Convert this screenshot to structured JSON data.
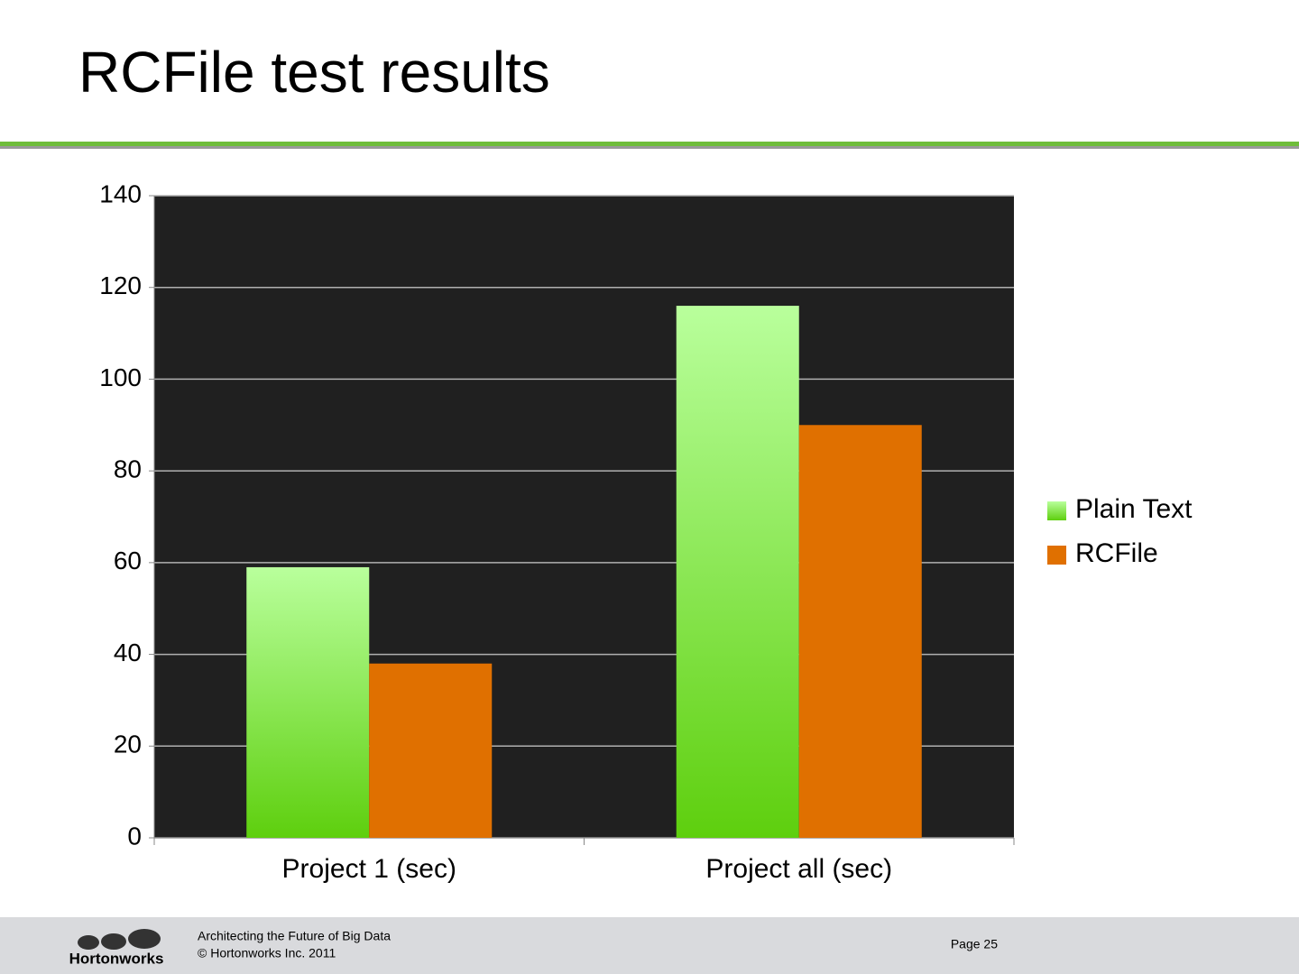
{
  "chart_data": {
    "type": "bar",
    "title": "RCFile test results",
    "categories": [
      "Project 1 (sec)",
      "Project all (sec)"
    ],
    "series": [
      {
        "name": "Plain Text",
        "color": "#5ecf0e",
        "values": [
          59,
          116
        ]
      },
      {
        "name": "RCFile",
        "color": "#e07000",
        "values": [
          38,
          90
        ]
      }
    ],
    "ylim": [
      0,
      140
    ],
    "yticks": [
      0,
      20,
      40,
      60,
      80,
      100,
      120,
      140
    ],
    "grid": true,
    "legend": "right"
  },
  "slide": {
    "footer_line1": "Architecting the Future of Big Data",
    "footer_line2": "© Hortonworks Inc. 2011",
    "page": "Page 25",
    "logo": "Hortonworks"
  }
}
